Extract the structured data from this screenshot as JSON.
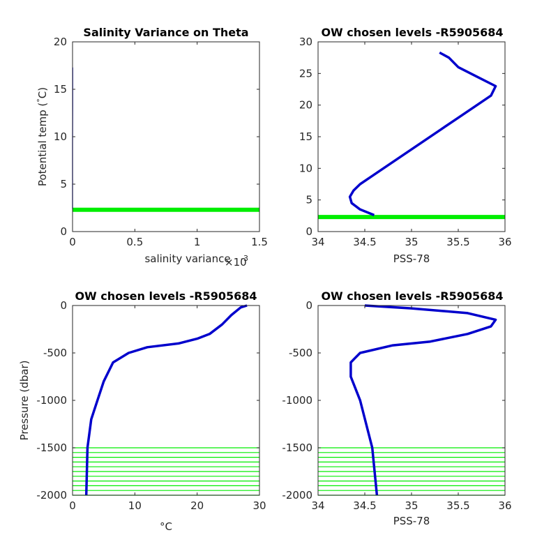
{
  "colors": {
    "profile": "#0000cc",
    "chosen_level": "#00ee00",
    "axis": "#262626"
  },
  "chart_data": [
    {
      "type": "line",
      "title": "Salinity Variance on Theta",
      "xlabel": "salinity variance",
      "x_exponent_base": "×10",
      "x_exponent_power": "-3",
      "ylabel": "Potential temp (",
      "ylabel_degree": "°",
      "ylabel_unit": "C)",
      "xlim": [
        0,
        1.5
      ],
      "ylim": [
        0,
        20
      ],
      "xticks": [
        0,
        0.5,
        1,
        1.5
      ],
      "xtick_labels": [
        "0",
        "0.5",
        "1",
        "1.5"
      ],
      "yticks": [
        0,
        5,
        10,
        15,
        20
      ],
      "ytick_labels": [
        "0",
        "5",
        "10",
        "15",
        "20"
      ],
      "series": [
        {
          "x_scale": 0.001,
          "points": [
            [
              0.1,
              2.4
            ],
            [
              0.11,
              2.9
            ],
            [
              0.08,
              3.2
            ],
            [
              0.09,
              3.5
            ],
            [
              0.1,
              3.8
            ],
            [
              0.18,
              4.0
            ],
            [
              0.22,
              4.3
            ],
            [
              0.18,
              4.6
            ],
            [
              0.24,
              4.9
            ],
            [
              0.28,
              5.3
            ],
            [
              0.2,
              5.5
            ],
            [
              0.27,
              6.0
            ],
            [
              0.24,
              6.4
            ],
            [
              0.18,
              6.8
            ],
            [
              0.16,
              7.2
            ],
            [
              0.14,
              7.6
            ],
            [
              0.16,
              8.2
            ],
            [
              0.13,
              8.8
            ],
            [
              0.11,
              9.2
            ],
            [
              0.45,
              11.0
            ],
            [
              1.03,
              13.2
            ],
            [
              1.28,
              15.5
            ],
            [
              1.14,
              17.3
            ]
          ]
        }
      ],
      "chosen_levels": [
        2.3
      ]
    },
    {
      "type": "line",
      "title": "OW chosen levels -R5905684",
      "xlabel": "PSS-78",
      "ylabel": "",
      "xlim": [
        34,
        36
      ],
      "ylim": [
        0,
        30
      ],
      "xticks": [
        34,
        34.5,
        35,
        35.5,
        36
      ],
      "xtick_labels": [
        "34",
        "34.5",
        "35",
        "35.5",
        "36"
      ],
      "yticks": [
        0,
        5,
        10,
        15,
        20,
        25,
        30
      ],
      "ytick_labels": [
        "0",
        "5",
        "10",
        "15",
        "20",
        "25",
        "30"
      ],
      "series": [
        {
          "points": [
            [
              34.6,
              2.6
            ],
            [
              34.45,
              3.5
            ],
            [
              34.36,
              4.5
            ],
            [
              34.34,
              5.5
            ],
            [
              34.38,
              6.5
            ],
            [
              34.45,
              7.5
            ],
            [
              34.55,
              8.5
            ],
            [
              34.7,
              10.0
            ],
            [
              34.9,
              12.0
            ],
            [
              35.1,
              14.0
            ],
            [
              35.3,
              16.0
            ],
            [
              35.5,
              18.0
            ],
            [
              35.7,
              20.0
            ],
            [
              35.85,
              21.5
            ],
            [
              35.9,
              23.0
            ],
            [
              35.7,
              24.5
            ],
            [
              35.5,
              26.0
            ],
            [
              35.4,
              27.5
            ],
            [
              35.3,
              28.3
            ]
          ]
        }
      ],
      "chosen_levels": [
        2.3
      ]
    },
    {
      "type": "line",
      "title": "OW chosen levels -R5905684",
      "xlabel": "°C",
      "ylabel": "Pressure (dbar)",
      "xlim": [
        0,
        30
      ],
      "ylim": [
        -2000,
        0
      ],
      "xticks": [
        0,
        10,
        20,
        30
      ],
      "xtick_labels": [
        "0",
        "10",
        "20",
        "30"
      ],
      "yticks": [
        -2000,
        -1500,
        -1000,
        -500,
        0
      ],
      "ytick_labels": [
        "-2000",
        "-1500",
        "-1000",
        "-500",
        "0"
      ],
      "series": [
        {
          "points": [
            [
              2.2,
              -2000
            ],
            [
              2.4,
              -1500
            ],
            [
              3.0,
              -1200
            ],
            [
              4.0,
              -1000
            ],
            [
              5.0,
              -800
            ],
            [
              6.5,
              -600
            ],
            [
              9.0,
              -500
            ],
            [
              12.0,
              -440
            ],
            [
              17.0,
              -400
            ],
            [
              20.0,
              -350
            ],
            [
              22.0,
              -300
            ],
            [
              24.0,
              -200
            ],
            [
              25.5,
              -100
            ],
            [
              27.0,
              -20
            ],
            [
              28.0,
              0
            ]
          ]
        }
      ],
      "chosen_levels": [
        -1500,
        -1550,
        -1600,
        -1650,
        -1700,
        -1750,
        -1800,
        -1850,
        -1900,
        -1950,
        -2000
      ]
    },
    {
      "type": "line",
      "title": "OW chosen levels -R5905684",
      "xlabel": "PSS-78",
      "ylabel": "",
      "xlim": [
        34,
        36
      ],
      "ylim": [
        -2000,
        0
      ],
      "xticks": [
        34,
        34.5,
        35,
        35.5,
        36
      ],
      "xtick_labels": [
        "34",
        "34.5",
        "35",
        "35.5",
        "36"
      ],
      "yticks": [
        -2000,
        -1500,
        -1000,
        -500,
        0
      ],
      "ytick_labels": [
        "-2000",
        "-1500",
        "-1000",
        "-500",
        "0"
      ],
      "series": [
        {
          "points": [
            [
              34.63,
              -2000
            ],
            [
              34.58,
              -1500
            ],
            [
              34.45,
              -1000
            ],
            [
              34.35,
              -750
            ],
            [
              34.35,
              -600
            ],
            [
              34.45,
              -500
            ],
            [
              34.8,
              -420
            ],
            [
              35.2,
              -380
            ],
            [
              35.6,
              -300
            ],
            [
              35.85,
              -220
            ],
            [
              35.9,
              -150
            ],
            [
              35.6,
              -80
            ],
            [
              35.0,
              -30
            ],
            [
              34.5,
              0
            ]
          ]
        }
      ],
      "chosen_levels": [
        -1500,
        -1550,
        -1600,
        -1650,
        -1700,
        -1750,
        -1800,
        -1850,
        -1900,
        -1950,
        -2000
      ]
    }
  ]
}
